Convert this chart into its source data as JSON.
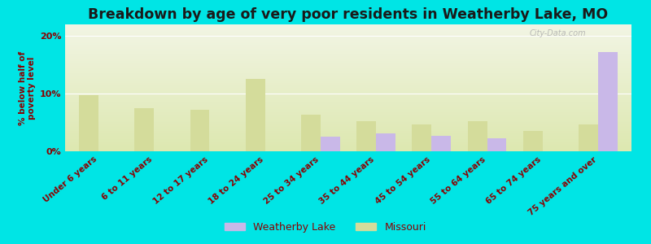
{
  "title": "Breakdown by age of very poor residents in Weatherby Lake, MO",
  "ylabel": "% below half of\npoverty level",
  "categories": [
    "Under 6 years",
    "6 to 11 years",
    "12 to 17 years",
    "18 to 24 years",
    "25 to 34 years",
    "35 to 44 years",
    "45 to 54 years",
    "55 to 64 years",
    "65 to 74 years",
    "75 years and over"
  ],
  "weatherby_lake": [
    0,
    0,
    0,
    0,
    2.5,
    3.1,
    2.7,
    2.2,
    0,
    17.2
  ],
  "missouri": [
    9.7,
    7.5,
    7.2,
    12.5,
    6.3,
    5.2,
    4.7,
    5.2,
    3.5,
    4.7
  ],
  "weatherby_color": "#c9b8e8",
  "missouri_color": "#d4dc9b",
  "background_color": "#00e5e5",
  "plot_bg_color_top": "#f2f5e4",
  "plot_bg_color_bottom": "#dde8b0",
  "title_color": "#1a1a1a",
  "ylabel_color": "#8b0000",
  "tick_color": "#8b0000",
  "ylim": [
    0,
    22
  ],
  "yticks": [
    0,
    10,
    20
  ],
  "ytick_labels": [
    "0%",
    "10%",
    "20%"
  ],
  "bar_width": 0.35,
  "title_fontsize": 12.5,
  "label_fontsize": 7.5,
  "tick_fontsize": 8,
  "legend_fontsize": 9,
  "watermark": "City-Data.com"
}
